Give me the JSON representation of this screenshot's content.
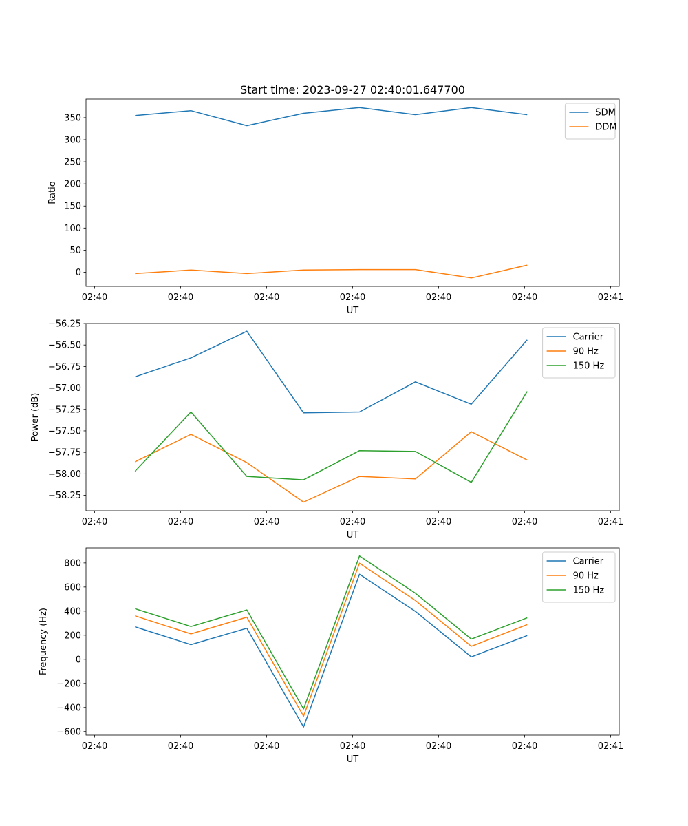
{
  "figure_title": "Start time: 2023-09-27 02:40:01.647700",
  "colors": {
    "blue": "#1f77b4",
    "orange": "#ff7f0e",
    "green": "#2ca02c"
  },
  "chart_data": [
    {
      "type": "line",
      "id": "ratio",
      "title": "Start time: 2023-09-27 02:40:01.647700",
      "xlabel": "UT",
      "ylabel": "Ratio",
      "ylim": [
        -32,
        392
      ],
      "yticks": [
        0,
        50,
        100,
        150,
        200,
        250,
        300,
        350
      ],
      "ytick_labels": [
        "0",
        "50",
        "100",
        "150",
        "200",
        "250",
        "300",
        "350"
      ],
      "xticks": [
        0.1,
        1.1,
        2.1,
        3.1,
        4.1,
        5.1,
        6.1
      ],
      "xtick_labels": [
        "02:40",
        "02:40",
        "02:40",
        "02:40",
        "02:40",
        "02:40",
        "02:41"
      ],
      "xlim": [
        0,
        6.2
      ],
      "x": [
        0.57,
        1.22,
        1.87,
        2.53,
        3.18,
        3.83,
        4.48,
        5.13
      ],
      "legend_position": "top-right",
      "series": [
        {
          "name": "SDM",
          "color": "#1f77b4",
          "values": [
            355,
            366,
            332,
            360,
            373,
            357,
            373,
            357
          ]
        },
        {
          "name": "DDM",
          "color": "#ff7f0e",
          "values": [
            -3,
            5,
            -3,
            5,
            6,
            6,
            -13,
            16
          ]
        }
      ]
    },
    {
      "type": "line",
      "id": "power",
      "title": "",
      "xlabel": "UT",
      "ylabel": "Power (dB)",
      "ylim": [
        -58.43,
        -56.25
      ],
      "yticks": [
        -58.25,
        -58.0,
        -57.75,
        -57.5,
        -57.25,
        -57.0,
        -56.75,
        -56.5,
        -56.25
      ],
      "ytick_labels": [
        "−58.25",
        "−58.00",
        "−57.75",
        "−57.50",
        "−57.25",
        "−57.00",
        "−56.75",
        "−56.50",
        "−56.25"
      ],
      "xticks": [
        0.1,
        1.1,
        2.1,
        3.1,
        4.1,
        5.1,
        6.1
      ],
      "xtick_labels": [
        "02:40",
        "02:40",
        "02:40",
        "02:40",
        "02:40",
        "02:40",
        "02:41"
      ],
      "xlim": [
        0,
        6.2
      ],
      "x": [
        0.57,
        1.22,
        1.87,
        2.53,
        3.18,
        3.83,
        4.48,
        5.13
      ],
      "legend_position": "top-right",
      "series": [
        {
          "name": "Carrier",
          "color": "#1f77b4",
          "values": [
            -56.87,
            -56.65,
            -56.34,
            -57.29,
            -57.28,
            -56.93,
            -57.19,
            -56.44
          ]
        },
        {
          "name": "90 Hz",
          "color": "#ff7f0e",
          "values": [
            -57.86,
            -57.54,
            -57.87,
            -58.33,
            -58.03,
            -58.06,
            -57.51,
            -57.84
          ]
        },
        {
          "name": "150 Hz",
          "color": "#2ca02c",
          "values": [
            -57.97,
            -57.28,
            -58.03,
            -58.07,
            -57.73,
            -57.74,
            -58.1,
            -57.04
          ]
        }
      ]
    },
    {
      "type": "line",
      "id": "frequency",
      "title": "",
      "xlabel": "UT",
      "ylabel": "Frequency (Hz)",
      "ylim": [
        -630,
        925
      ],
      "yticks": [
        -600,
        -400,
        -200,
        0,
        200,
        400,
        600,
        800
      ],
      "ytick_labels": [
        "−600",
        "−400",
        "−200",
        "0",
        "200",
        "400",
        "600",
        "800"
      ],
      "xticks": [
        0.1,
        1.1,
        2.1,
        3.1,
        4.1,
        5.1,
        6.1
      ],
      "xtick_labels": [
        "02:40",
        "02:40",
        "02:40",
        "02:40",
        "02:40",
        "02:40",
        "02:41"
      ],
      "xlim": [
        0,
        6.2
      ],
      "x": [
        0.57,
        1.22,
        1.87,
        2.53,
        3.18,
        3.83,
        4.48,
        5.13
      ],
      "legend_position": "top-right",
      "series": [
        {
          "name": "Carrier",
          "color": "#1f77b4",
          "values": [
            270,
            122,
            258,
            -562,
            706,
            398,
            20,
            197
          ]
        },
        {
          "name": "90 Hz",
          "color": "#ff7f0e",
          "values": [
            361,
            211,
            350,
            -472,
            798,
            488,
            108,
            288
          ]
        },
        {
          "name": "150 Hz",
          "color": "#2ca02c",
          "values": [
            420,
            272,
            410,
            -412,
            858,
            548,
            168,
            345
          ]
        }
      ]
    }
  ]
}
